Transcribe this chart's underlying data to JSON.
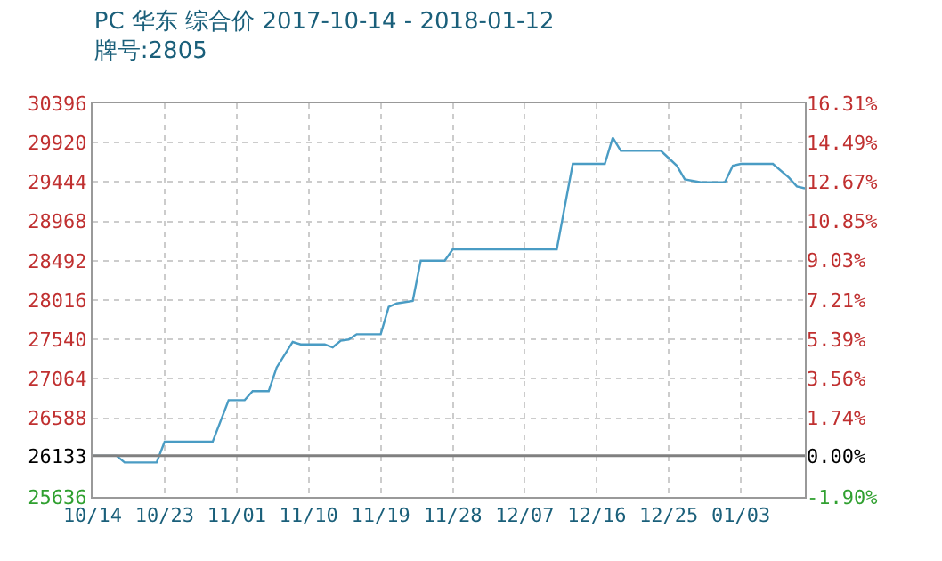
{
  "chart_data": {
    "type": "line",
    "title": "PC 华东 综合价 2017-10-14 - 2018-01-12",
    "subtitle": "牌号:2805",
    "x": [
      "2017-10-14",
      "2017-10-17",
      "2017-10-18",
      "2017-10-22",
      "2017-10-23",
      "2017-10-29",
      "2017-10-31",
      "2017-11-02",
      "2017-11-03",
      "2017-11-05",
      "2017-11-06",
      "2017-11-08",
      "2017-11-09",
      "2017-11-12",
      "2017-11-13",
      "2017-11-14",
      "2017-11-15",
      "2017-11-16",
      "2017-11-19",
      "2017-11-20",
      "2017-11-21",
      "2017-11-23",
      "2017-11-24",
      "2017-11-27",
      "2017-11-28",
      "2017-12-11",
      "2017-12-13",
      "2017-12-17",
      "2017-12-18",
      "2017-12-19",
      "2017-12-24",
      "2017-12-26",
      "2017-12-27",
      "2017-12-29",
      "2018-01-01",
      "2018-01-02",
      "2018-01-03",
      "2018-01-07",
      "2018-01-09",
      "2018-01-10",
      "2018-01-11"
    ],
    "series": [
      {
        "color": "#4a9cc4",
        "values": [
          26133,
          26133,
          26052,
          26052,
          26303,
          26303,
          26806,
          26806,
          26914,
          26914,
          27201,
          27510,
          27481,
          27481,
          27445,
          27524,
          27539,
          27603,
          27603,
          27933,
          27976,
          28005,
          28493,
          28493,
          28630,
          28630,
          29664,
          29664,
          29980,
          29822,
          29822,
          29642,
          29477,
          29441,
          29441,
          29642,
          29664,
          29664,
          29498,
          29390,
          29368
        ]
      }
    ],
    "xlim": [
      "2017-10-14",
      "2018-01-11"
    ],
    "xticks": [
      {
        "value": "2017-10-14",
        "label": "10/14"
      },
      {
        "value": "2017-10-23",
        "label": "10/23"
      },
      {
        "value": "2017-11-01",
        "label": "11/01"
      },
      {
        "value": "2017-11-10",
        "label": "11/10"
      },
      {
        "value": "2017-11-19",
        "label": "11/19"
      },
      {
        "value": "2017-11-28",
        "label": "11/28"
      },
      {
        "value": "2017-12-07",
        "label": "12/07"
      },
      {
        "value": "2017-12-16",
        "label": "12/16"
      },
      {
        "value": "2017-12-25",
        "label": "12/25"
      },
      {
        "value": "2018-01-03",
        "label": "01/03"
      }
    ],
    "ylim": [
      25636,
      30396
    ],
    "yticks": [
      25636,
      26133,
      26588,
      27064,
      27540,
      28016,
      28492,
      28968,
      29444,
      29920,
      30396
    ],
    "y2lim": [
      -1.9,
      16.31
    ],
    "y2ticks": [
      {
        "value": -1.9,
        "label": "-1.90%"
      },
      {
        "value": 0,
        "label": "0.00%"
      },
      {
        "value": 1.74,
        "label": "1.74%"
      },
      {
        "value": 3.56,
        "label": "3.56%"
      },
      {
        "value": 5.39,
        "label": "5.39%"
      },
      {
        "value": 7.21,
        "label": "7.21%"
      },
      {
        "value": 9.03,
        "label": "9.03%"
      },
      {
        "value": 10.85,
        "label": "10.85%"
      },
      {
        "value": 12.67,
        "label": "12.67%"
      },
      {
        "value": 14.49,
        "label": "14.49%"
      },
      {
        "value": 16.31,
        "label": "16.31%"
      }
    ],
    "ref_lines": [
      {
        "axis": "y",
        "value": 26133,
        "color": "#808080"
      }
    ],
    "grid": true,
    "legend": false,
    "marker": "none",
    "line_style": "solid"
  }
}
